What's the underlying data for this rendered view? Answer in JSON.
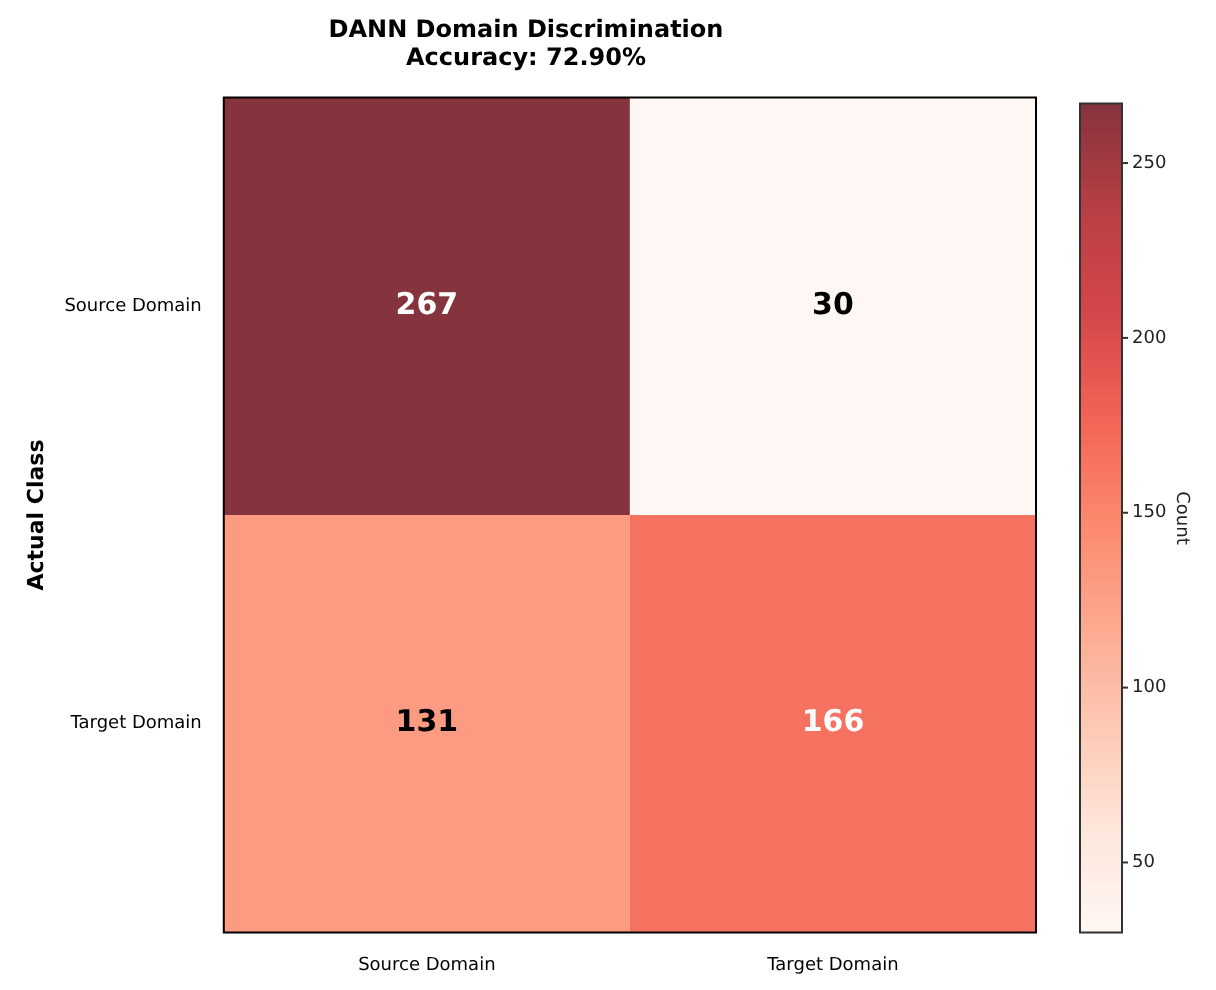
{
  "chart_data": {
    "type": "heatmap",
    "title": "DANN Domain Discrimination",
    "subtitle": "Accuracy: 72.90%",
    "ylabel": "Actual Class",
    "clabel": "Count",
    "categories": [
      "Source Domain",
      "Target Domain"
    ],
    "y_categories": [
      "Source Domain",
      "Target Domain"
    ],
    "cells": [
      [
        267,
        30
      ],
      [
        131,
        166
      ]
    ],
    "data_labels": true,
    "clim": [
      30,
      267
    ],
    "cticks": [
      50,
      100,
      150,
      200,
      250
    ]
  }
}
